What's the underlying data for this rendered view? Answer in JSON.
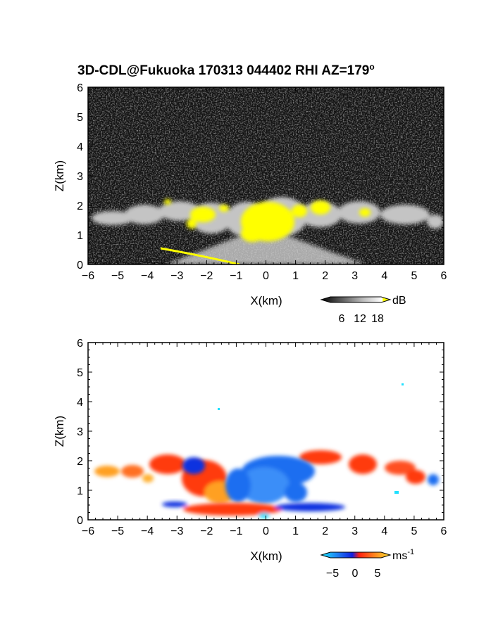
{
  "title": "3D-CDL@Fukuoka 170313 044402 RHI AZ=179",
  "title_sup": "o",
  "colors": {
    "reflectivity_high": "#ffff00",
    "velocity_negative": "#1e6ef0",
    "velocity_positive": "#ff3a10",
    "velocity_positive_high": "#ffc030",
    "velocity_cyan": "#20e0ff"
  },
  "chart_data": [
    {
      "type": "heatmap",
      "panel": "reflectivity",
      "xlabel": "X(km)",
      "ylabel": "Z(km)",
      "xlim": [
        -6,
        6
      ],
      "ylim": [
        0,
        6
      ],
      "xticks": [
        "-6",
        "-5",
        "-4",
        "-3",
        "-2",
        "-1",
        "0",
        "1",
        "2",
        "3",
        "4",
        "5",
        "6"
      ],
      "yticks": [
        "0",
        "1",
        "2",
        "3",
        "4",
        "5",
        "6"
      ],
      "colorbar": {
        "unit": "dB",
        "ticks": [
          "6",
          "12",
          "18"
        ],
        "colormap": "gray-to-yellow"
      },
      "features": [
        {
          "name": "cloud layer",
          "x_range": [
            -6,
            6
          ],
          "z_range": [
            1.0,
            2.3
          ]
        },
        {
          "name": "strong echo core",
          "x_range": [
            -1,
            1.5
          ],
          "z_range": [
            0.8,
            2.2
          ],
          "value_db": 18
        },
        {
          "name": "low-angle band",
          "x_range": [
            -3.5,
            -0.8
          ],
          "z_range": [
            0.0,
            0.5
          ],
          "value_db": 18
        }
      ]
    },
    {
      "type": "heatmap",
      "panel": "doppler velocity",
      "xlabel": "X(km)",
      "ylabel": "Z(km)",
      "xlim": [
        -6,
        6
      ],
      "ylim": [
        0,
        6
      ],
      "xticks": [
        "-6",
        "-5",
        "-4",
        "-3",
        "-2",
        "-1",
        "0",
        "1",
        "2",
        "3",
        "4",
        "5",
        "6"
      ],
      "yticks": [
        "0",
        "1",
        "2",
        "3",
        "4",
        "5",
        "6"
      ],
      "colorbar": {
        "unit": "ms",
        "unit_exp": "-1",
        "ticks": [
          "-5",
          "0",
          "5"
        ],
        "colormap": "cyan-blue-red-yellow"
      },
      "features": [
        {
          "name": "receding core",
          "x_range": [
            -1,
            1.5
          ],
          "z_range": [
            0.8,
            2.2
          ],
          "velocity": -4
        },
        {
          "name": "approaching cloud edges",
          "x_range": [
            -6,
            6
          ],
          "z_range": [
            1.0,
            2.3
          ],
          "velocity": 4
        },
        {
          "name": "near-ground outflow",
          "x_range": [
            -3.5,
            3.2
          ],
          "z_range": [
            0.0,
            0.5
          ],
          "velocity": 3
        }
      ]
    }
  ]
}
